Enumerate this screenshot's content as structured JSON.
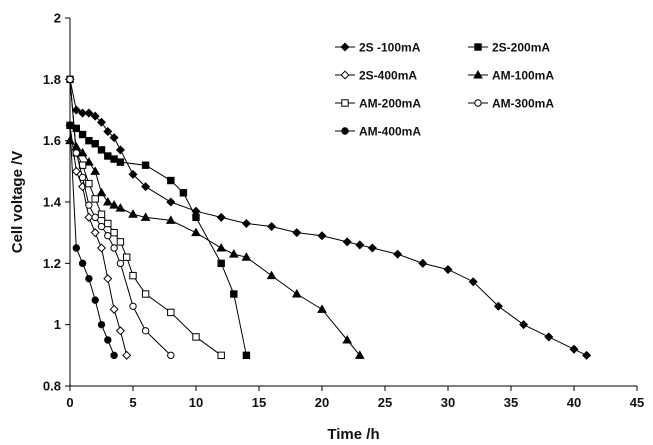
{
  "chart_data": {
    "type": "line",
    "title": "",
    "xlabel": "Time /h",
    "ylabel": "Cell voltage /V",
    "xlim": [
      0,
      45
    ],
    "ylim": [
      0.8,
      2.0
    ],
    "xticks": [
      "0",
      "5",
      "10",
      "15",
      "20",
      "25",
      "30",
      "35",
      "40",
      "45"
    ],
    "yticks": [
      "0.8",
      "1",
      "1.2",
      "1.4",
      "1.6",
      "1.8",
      "2"
    ],
    "grid": false,
    "legend_position": "top-right",
    "series": [
      {
        "name": "2S -100mA",
        "marker": "diamond-filled",
        "x": [
          0,
          0.5,
          1,
          1.5,
          2,
          2.5,
          3,
          3.5,
          4,
          5,
          6,
          8,
          10,
          12,
          14,
          16,
          18,
          20,
          22,
          23,
          24,
          26,
          28,
          30,
          32,
          34,
          36,
          38,
          40,
          41
        ],
        "y": [
          1.8,
          1.7,
          1.69,
          1.69,
          1.68,
          1.66,
          1.63,
          1.61,
          1.57,
          1.49,
          1.45,
          1.4,
          1.37,
          1.35,
          1.33,
          1.32,
          1.3,
          1.29,
          1.27,
          1.26,
          1.25,
          1.23,
          1.2,
          1.18,
          1.14,
          1.06,
          1.0,
          0.96,
          0.92,
          0.9
        ]
      },
      {
        "name": "2S-200mA",
        "marker": "square-filled",
        "x": [
          0,
          0.5,
          1,
          1.5,
          2,
          2.5,
          3,
          3.5,
          4,
          6,
          8,
          9,
          10,
          12,
          13,
          14
        ],
        "y": [
          1.65,
          1.64,
          1.62,
          1.6,
          1.59,
          1.57,
          1.55,
          1.54,
          1.53,
          1.52,
          1.47,
          1.43,
          1.35,
          1.2,
          1.1,
          0.9
        ]
      },
      {
        "name": "2S-400mA",
        "marker": "diamond-open",
        "x": [
          0,
          0.5,
          1,
          1.5,
          2,
          2.5,
          3,
          3.5,
          4,
          4.5
        ],
        "y": [
          1.65,
          1.5,
          1.45,
          1.35,
          1.3,
          1.25,
          1.15,
          1.05,
          0.98,
          0.9
        ]
      },
      {
        "name": "AM-100mA",
        "marker": "triangle-filled",
        "x": [
          0,
          0.5,
          1,
          1.5,
          2,
          2.5,
          3,
          3.5,
          4,
          5,
          6,
          8,
          10,
          12,
          13,
          14,
          16,
          18,
          20,
          22,
          23
        ],
        "y": [
          1.6,
          1.58,
          1.56,
          1.53,
          1.5,
          1.43,
          1.4,
          1.39,
          1.38,
          1.36,
          1.35,
          1.34,
          1.3,
          1.25,
          1.23,
          1.22,
          1.16,
          1.1,
          1.05,
          0.95,
          0.9
        ]
      },
      {
        "name": "AM-200mA",
        "marker": "square-open",
        "x": [
          0,
          0.5,
          1,
          1.5,
          2,
          2.5,
          3,
          3.5,
          4,
          4.5,
          5,
          6,
          8,
          10,
          12
        ],
        "y": [
          1.8,
          1.56,
          1.52,
          1.46,
          1.41,
          1.36,
          1.33,
          1.3,
          1.27,
          1.22,
          1.16,
          1.1,
          1.04,
          0.96,
          0.9
        ]
      },
      {
        "name": "AM-300mA",
        "marker": "circle-open",
        "x": [
          0,
          0.5,
          1,
          1.5,
          2,
          2.5,
          3,
          3.5,
          4,
          5,
          6,
          8
        ],
        "y": [
          1.8,
          1.56,
          1.48,
          1.39,
          1.35,
          1.32,
          1.29,
          1.25,
          1.2,
          1.06,
          0.98,
          0.9
        ]
      },
      {
        "name": "AM-400mA",
        "marker": "circle-filled",
        "x": [
          0,
          0.5,
          1,
          1.5,
          2,
          2.5,
          3,
          3.5
        ],
        "y": [
          1.65,
          1.25,
          1.2,
          1.15,
          1.08,
          1.0,
          0.95,
          0.9
        ]
      }
    ]
  }
}
